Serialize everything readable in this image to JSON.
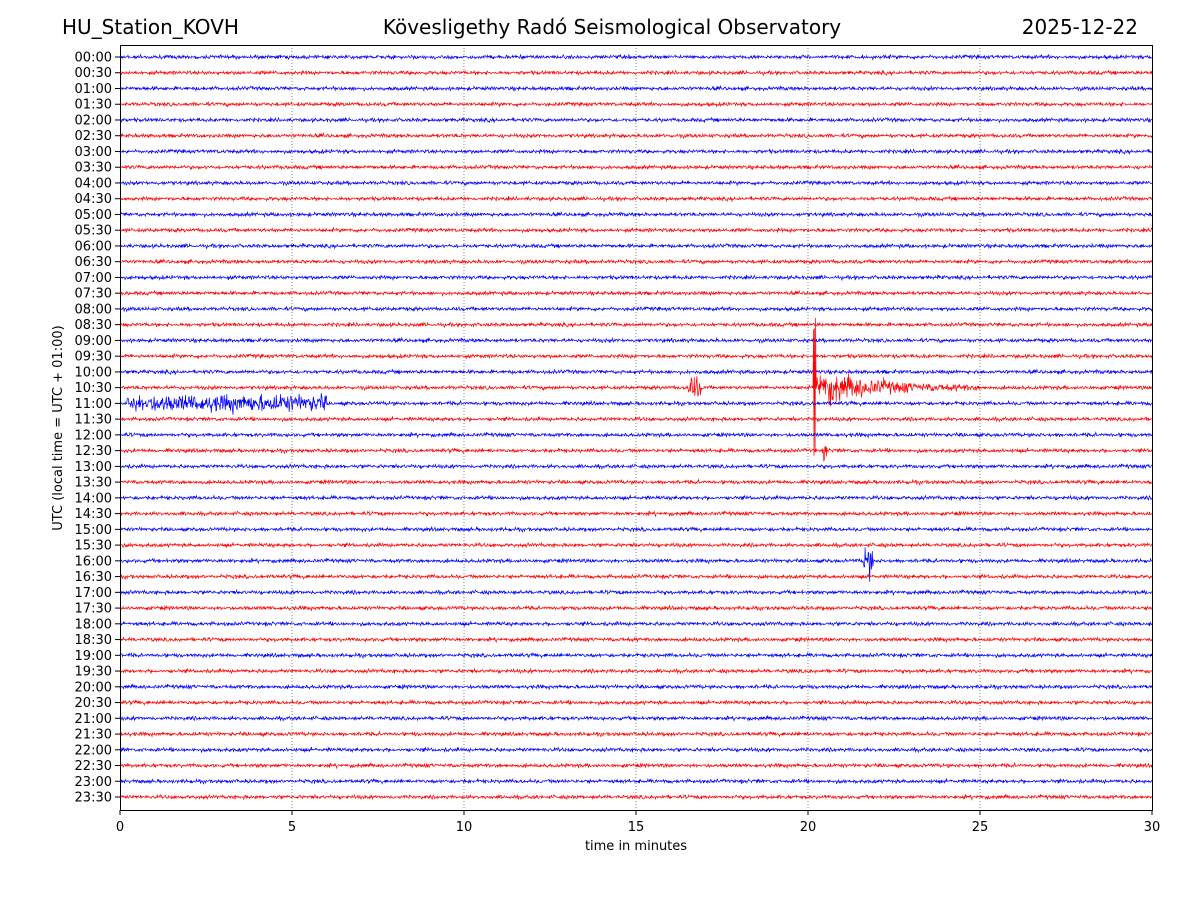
{
  "header": {
    "station": "HU_Station_KOVH",
    "observatory": "Kövesligethy Radó Seismological Observatory",
    "date": "2025-12-22"
  },
  "chart_data": {
    "type": "line",
    "title": "Kövesligethy Radó Seismological Observatory",
    "xlabel": "time in minutes",
    "ylabel": "UTC (local time = UTC + 01:00)",
    "xlim": [
      0,
      30
    ],
    "x_ticks": [
      "0",
      "5",
      "10",
      "15",
      "20",
      "25",
      "30"
    ],
    "grid": "vertical dotted at x ticks",
    "row_colors": [
      "#0000ff",
      "#ff0000"
    ],
    "rows": [
      "00:00",
      "00:30",
      "01:00",
      "01:30",
      "02:00",
      "02:30",
      "03:00",
      "03:30",
      "04:00",
      "04:30",
      "05:00",
      "05:30",
      "06:00",
      "06:30",
      "07:00",
      "07:30",
      "08:00",
      "08:30",
      "09:00",
      "09:30",
      "10:00",
      "10:30",
      "11:00",
      "11:30",
      "12:00",
      "12:30",
      "13:00",
      "13:30",
      "14:00",
      "14:30",
      "15:00",
      "15:30",
      "16:00",
      "16:30",
      "17:00",
      "17:30",
      "18:00",
      "18:30",
      "19:00",
      "19:30",
      "20:00",
      "20:30",
      "21:00",
      "21:30",
      "22:00",
      "22:30",
      "23:00",
      "23:30"
    ],
    "events": [
      {
        "row": "10:30",
        "start_min": 20.15,
        "end_min": 25.0,
        "relative_amplitude": 9,
        "type": "earthquake"
      },
      {
        "row": "10:30",
        "start_min": 16.5,
        "end_min": 16.9,
        "relative_amplitude": 1.2,
        "type": "small"
      },
      {
        "row": "12:30",
        "start_min": 20.45,
        "end_min": 20.55,
        "relative_amplitude": 1.3,
        "type": "small"
      },
      {
        "row": "16:00",
        "start_min": 21.6,
        "end_min": 21.9,
        "relative_amplitude": 1.6,
        "type": "small"
      },
      {
        "row": "11:00",
        "start_min": 0.2,
        "end_min": 6.0,
        "relative_amplitude": 0.8,
        "type": "noise burst"
      }
    ]
  }
}
